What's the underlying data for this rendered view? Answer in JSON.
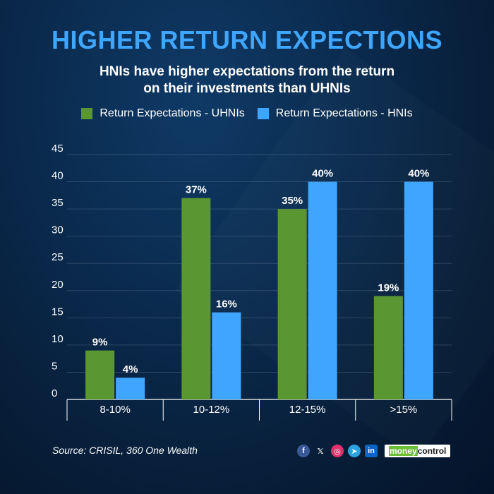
{
  "header": {
    "title": "HIGHER RETURN EXPECTIONS",
    "subtitle_line1": "HNIs have higher expectations from the return",
    "subtitle_line2": "on their investments than UHNIs"
  },
  "legend": {
    "series1_label": "Return Expectations - UHNIs",
    "series2_label": "Return Expectations - HNIs"
  },
  "chart_data": {
    "type": "bar",
    "categories": [
      "8-10%",
      "10-12%",
      "12-15%",
      ">15%"
    ],
    "series": [
      {
        "name": "Return Expectations - UHNIs",
        "values": [
          9,
          37,
          35,
          19
        ],
        "labels": [
          "9%",
          "37%",
          "35%",
          "19%"
        ],
        "color": "#5a9632"
      },
      {
        "name": "Return Expectations - HNIs",
        "values": [
          4,
          16,
          40,
          40
        ],
        "labels": [
          "4%",
          "16%",
          "40%",
          "40%"
        ],
        "color": "#3ea6ff"
      }
    ],
    "yticks": [
      0,
      5,
      10,
      15,
      20,
      25,
      30,
      35,
      40,
      45
    ],
    "ylim": [
      0,
      45
    ],
    "grid": true,
    "legend_position": "top"
  },
  "footer": {
    "source": "Source: CRISIL, 360 One Wealth",
    "brand_prefix": "money",
    "brand_suffix": "control",
    "social_icons": [
      "facebook-icon",
      "x-icon",
      "instagram-icon",
      "telegram-icon",
      "linkedin-icon"
    ]
  },
  "colors": {
    "uhni": "#5a9632",
    "hni": "#3ea6ff",
    "title": "#3ea6ff"
  }
}
